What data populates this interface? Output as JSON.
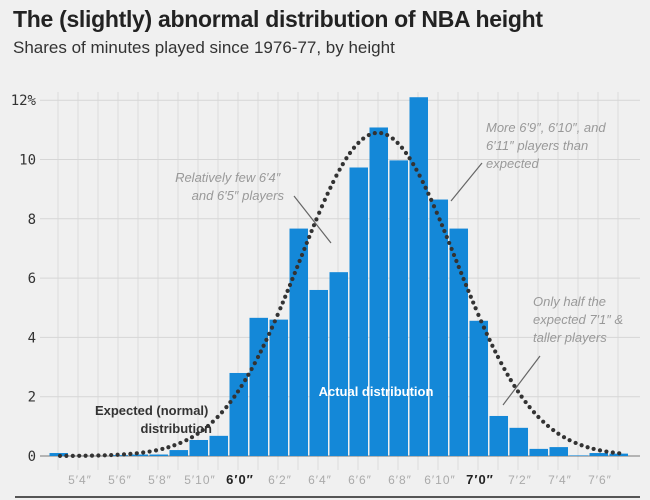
{
  "chart_data": {
    "type": "bar",
    "title": "The (slightly) abnormal distribution of NBA height",
    "subtitle": "Shares of minutes played since 1976-77, by height",
    "xlabel": "",
    "ylabel": "",
    "ylim": [
      0,
      12
    ],
    "yticks": [
      {
        "value": 0,
        "label": "0"
      },
      {
        "value": 2,
        "label": "2"
      },
      {
        "value": 4,
        "label": "4"
      },
      {
        "value": 6,
        "label": "6"
      },
      {
        "value": 8,
        "label": "8"
      },
      {
        "value": 10,
        "label": "10"
      },
      {
        "value": 12,
        "label": "12%"
      }
    ],
    "xticks": [
      {
        "inches": 64,
        "label": "5′4″",
        "bold": false
      },
      {
        "inches": 66,
        "label": "5′6″",
        "bold": false
      },
      {
        "inches": 68,
        "label": "5′8″",
        "bold": false
      },
      {
        "inches": 70,
        "label": "5′10″",
        "bold": false
      },
      {
        "inches": 72,
        "label": "6′0″",
        "bold": true
      },
      {
        "inches": 74,
        "label": "6′2″",
        "bold": false
      },
      {
        "inches": 76,
        "label": "6′4″",
        "bold": false
      },
      {
        "inches": 78,
        "label": "6′6″",
        "bold": false
      },
      {
        "inches": 80,
        "label": "6′8″",
        "bold": false
      },
      {
        "inches": 82,
        "label": "6′10″",
        "bold": false
      },
      {
        "inches": 84,
        "label": "7′0″",
        "bold": true
      },
      {
        "inches": 86,
        "label": "7′2″",
        "bold": false
      },
      {
        "inches": 88,
        "label": "7′4″",
        "bold": false
      },
      {
        "inches": 90,
        "label": "7′6″",
        "bold": false
      }
    ],
    "grid": true,
    "series": [
      {
        "name": "Actual distribution",
        "type": "bar",
        "color": "#1488d8",
        "x_inches": [
          63,
          64,
          65,
          66,
          67,
          68,
          69,
          70,
          71,
          72,
          73,
          74,
          75,
          76,
          77,
          78,
          79,
          80,
          81,
          82,
          83,
          84,
          85,
          86,
          87,
          88,
          89,
          90,
          91
        ],
        "values": [
          0.1,
          0.0,
          0.0,
          0.03,
          0.05,
          0.05,
          0.2,
          0.54,
          0.68,
          2.8,
          4.66,
          4.6,
          7.67,
          5.6,
          6.2,
          9.73,
          11.08,
          9.97,
          12.1,
          8.65,
          7.67,
          4.56,
          1.35,
          0.95,
          0.24,
          0.3,
          0.02,
          0.1,
          0.08
        ]
      },
      {
        "name": "Expected (normal) distribution",
        "type": "line",
        "style": "dotted",
        "color": "#333333",
        "mean_inches": 78.9,
        "sd_inches": 3.9,
        "peak_value": 10.9,
        "x_range_inches": [
          63,
          91
        ]
      }
    ],
    "annotations": [
      {
        "id": "expected",
        "lines": [
          "Expected (normal)",
          "distribution"
        ],
        "style": "bold-dark"
      },
      {
        "id": "actual",
        "lines": [
          "Actual distribution"
        ],
        "style": "bold-white"
      },
      {
        "id": "few-64-65",
        "lines": [
          "Relatively few 6′4″",
          "and 6′5″ players"
        ],
        "style": "italic-gray"
      },
      {
        "id": "more-69-611",
        "lines": [
          "More 6′9″, 6′10″, and",
          "6′11″ players than",
          "expected"
        ],
        "style": "italic-gray"
      },
      {
        "id": "half-71",
        "lines": [
          "Only half the",
          "expected 7′1″ &",
          "taller players"
        ],
        "style": "italic-gray"
      }
    ]
  }
}
